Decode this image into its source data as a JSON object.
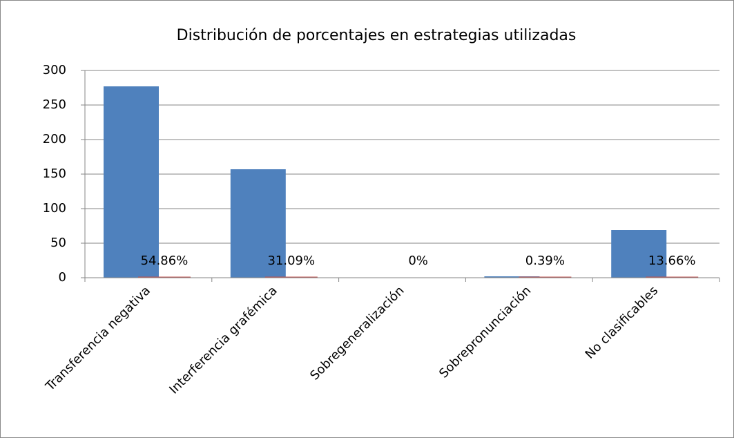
{
  "chart_data": {
    "type": "bar",
    "title": "Distribución de porcentajes en estrategias utilizadas",
    "categories": [
      "Transferencia negativa",
      "Interferencia grafémica",
      "Sobregeneralización",
      "Sobrepronunciación",
      "No clasificables"
    ],
    "series": [
      {
        "color": "#4f81bd",
        "values": [
          277,
          157,
          0,
          2,
          69
        ]
      },
      {
        "color": "#c0504d",
        "values": [
          0.5486,
          0.3109,
          0,
          0.0039,
          0.1366
        ],
        "value_labels": [
          "54.86%",
          "31.09%",
          "0%",
          "0.39%",
          "13.66%"
        ]
      }
    ],
    "ylim": [
      0,
      300
    ],
    "yticks": [
      0,
      50,
      100,
      150,
      200,
      250,
      300
    ],
    "grid": true
  }
}
